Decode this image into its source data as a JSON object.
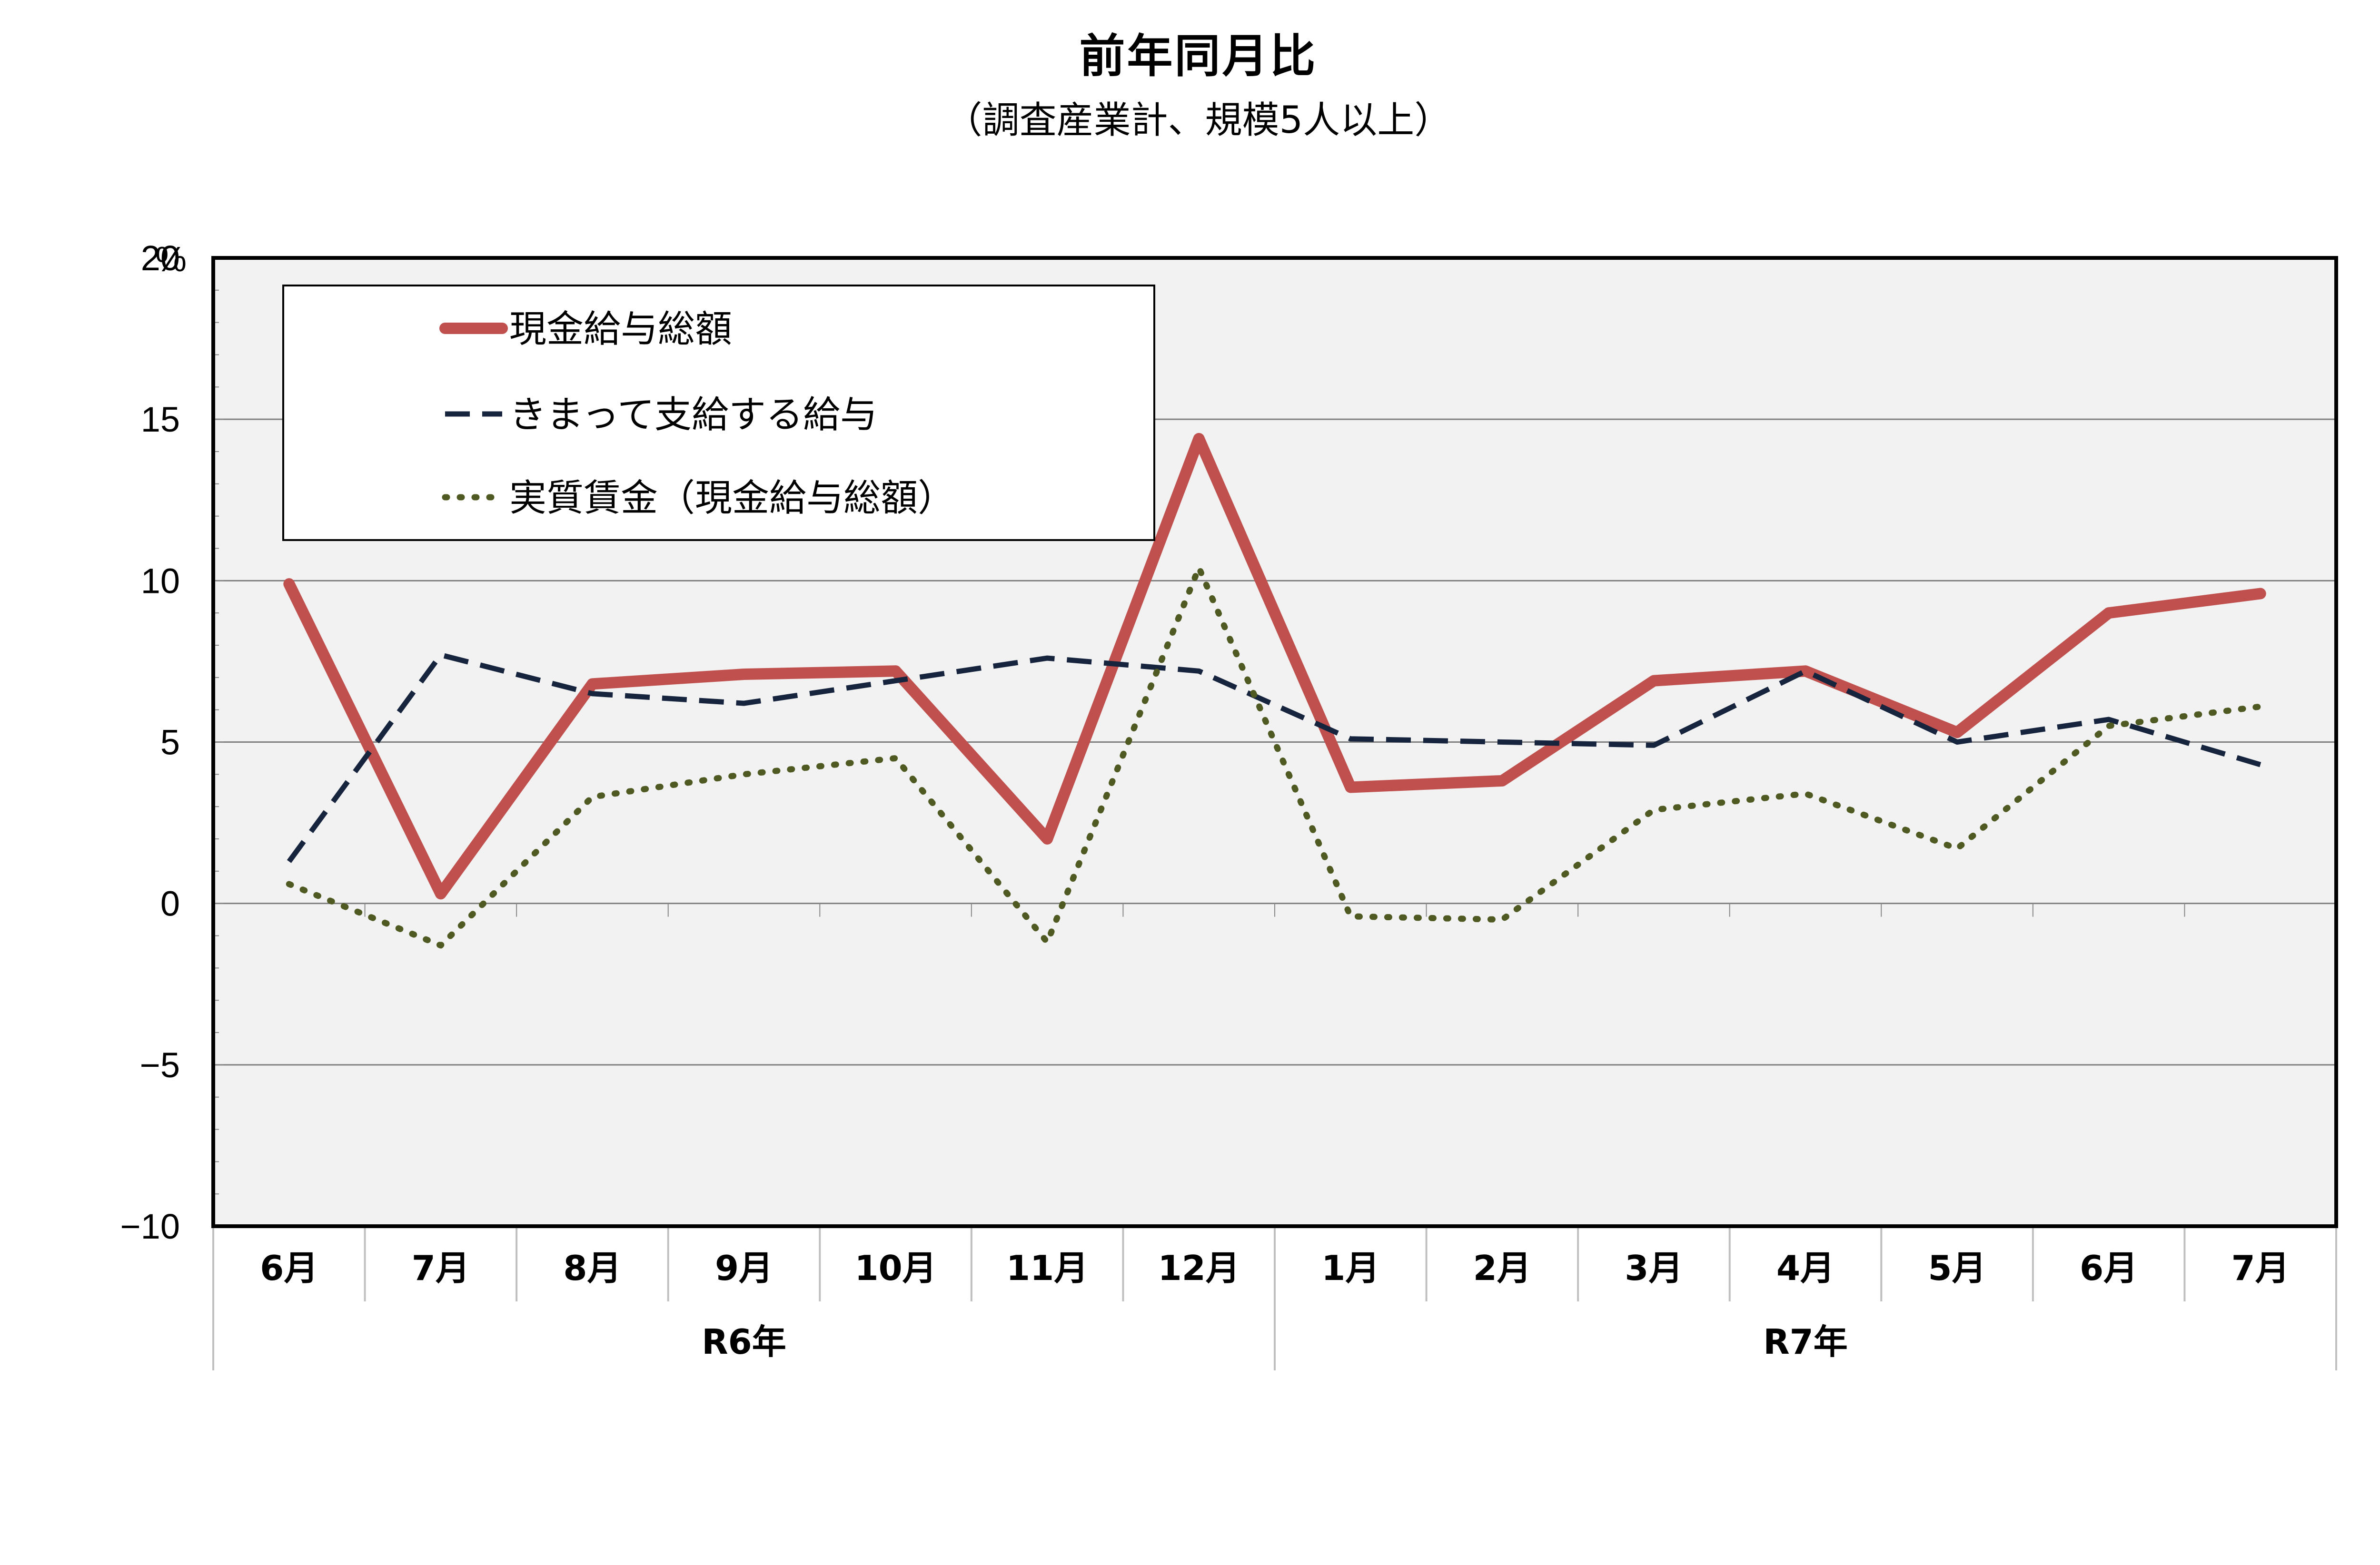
{
  "chart_data": {
    "type": "line",
    "title": "前年同月比",
    "subtitle": "（調査産業計、規模5人以上）",
    "y_unit": "%",
    "ylim": [
      -10,
      20
    ],
    "yticks": [
      -10,
      -5,
      0,
      5,
      10,
      15,
      20
    ],
    "grid": true,
    "legend_position": "top-left",
    "categories": [
      "6月",
      "7月",
      "8月",
      "9月",
      "10月",
      "11月",
      "12月",
      "1月",
      "2月",
      "3月",
      "4月",
      "5月",
      "6月",
      "7月"
    ],
    "groups": [
      {
        "label": "R6年",
        "start": 0,
        "end": 6
      },
      {
        "label": "R7年",
        "start": 7,
        "end": 13
      }
    ],
    "series": [
      {
        "name": "現金給与総額",
        "color": "#c0504d",
        "style": "solid",
        "values": [
          9.9,
          0.3,
          6.8,
          7.1,
          7.2,
          2.0,
          14.4,
          3.6,
          3.8,
          6.9,
          7.2,
          5.3,
          9.0,
          9.6
        ]
      },
      {
        "name": "きまって支給する給与",
        "color": "#17243e",
        "style": "dashed",
        "values": [
          1.3,
          7.7,
          6.5,
          6.2,
          6.9,
          7.6,
          7.2,
          5.1,
          5.0,
          4.9,
          7.2,
          5.0,
          5.7,
          4.3
        ]
      },
      {
        "name": "実質賃金（現金給与総額）",
        "color": "#4f5a22",
        "style": "dotted",
        "values": [
          0.6,
          -1.3,
          3.3,
          4.0,
          4.5,
          -1.2,
          10.4,
          -0.4,
          -0.5,
          2.9,
          3.4,
          1.7,
          5.5,
          6.1
        ]
      }
    ]
  }
}
